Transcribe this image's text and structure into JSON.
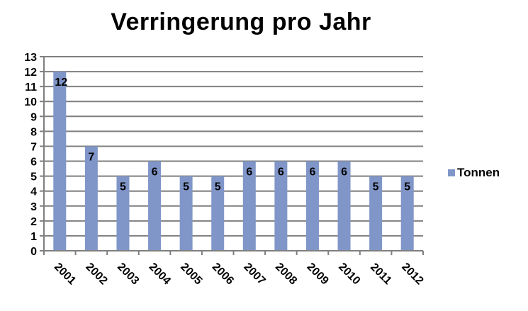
{
  "chart_data": {
    "type": "bar",
    "title": "Verringerung pro Jahr",
    "categories": [
      "2001",
      "2002",
      "2003",
      "2004",
      "2005",
      "2006",
      "2007",
      "2008",
      "2009",
      "2010",
      "2011",
      "2012"
    ],
    "series": [
      {
        "name": "Tonnen",
        "values": [
          12,
          7,
          5,
          6,
          5,
          5,
          6,
          6,
          6,
          6,
          5,
          5
        ]
      }
    ],
    "ylim": [
      0,
      13
    ],
    "yticks": [
      "0",
      "1",
      "2",
      "3",
      "4",
      "5",
      "6",
      "7",
      "8",
      "9",
      "10",
      "11",
      "12",
      "13"
    ],
    "grid": true,
    "legend_position": "right",
    "bar_color": "#8096c8",
    "grid_color": "#7f7f7f"
  }
}
